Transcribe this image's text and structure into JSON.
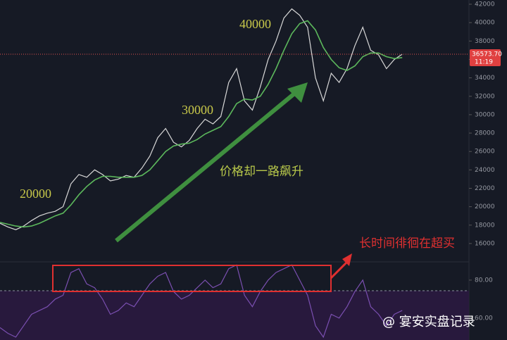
{
  "chart_data": [
    {
      "type": "line",
      "annotations": [
        "20000",
        "30000",
        "40000",
        "价格却一路飙升",
        "长时间徘徊在超买"
      ],
      "series": [
        {
          "name": "price",
          "color": "#d8d8d8",
          "values": [
            18200,
            17800,
            17500,
            17900,
            18500,
            19000,
            19300,
            19500,
            20000,
            22500,
            23500,
            23200,
            24000,
            23500,
            22800,
            23000,
            23400,
            23200,
            24200,
            25500,
            27500,
            28500,
            27000,
            26500,
            27200,
            28500,
            29500,
            29000,
            29800,
            33500,
            35000,
            31500,
            30500,
            33000,
            36000,
            38000,
            40500,
            41500,
            40800,
            39500,
            34000,
            31500,
            34500,
            33500,
            35000,
            37500,
            39500,
            37000,
            36500,
            35000,
            36000,
            36573.7
          ]
        },
        {
          "name": "ma",
          "color": "#5cb85c",
          "values": [
            18300,
            18100,
            17900,
            17800,
            17900,
            18200,
            18600,
            19000,
            19300,
            20200,
            21300,
            22200,
            22900,
            23300,
            23300,
            23200,
            23200,
            23200,
            23400,
            24000,
            25000,
            26000,
            26600,
            26800,
            26900,
            27300,
            27900,
            28300,
            28700,
            29800,
            31200,
            31700,
            31600,
            32000,
            33300,
            35000,
            37000,
            38800,
            39900,
            40200,
            39200,
            37300,
            36000,
            35100,
            34800,
            35300,
            36300,
            36700,
            36700,
            36300,
            36100,
            36200
          ]
        }
      ],
      "ylim": [
        14160,
        42460
      ],
      "yticks": [
        16000,
        18000,
        20000,
        22000,
        24000,
        26000,
        28000,
        30000,
        32000,
        34000,
        36000,
        38000,
        40000,
        42000
      ],
      "price_tag": {
        "value": 36573.7,
        "label": "36573.70"
      },
      "time_tag": "11:19"
    },
    {
      "type": "line",
      "series": [
        {
          "name": "rsi",
          "color": "#7a4fb0",
          "values": [
            55,
            52,
            50,
            56,
            62,
            64,
            66,
            70,
            72,
            84,
            86,
            78,
            76,
            70,
            62,
            64,
            68,
            66,
            72,
            78,
            82,
            84,
            74,
            70,
            72,
            76,
            80,
            76,
            78,
            86,
            88,
            72,
            66,
            74,
            80,
            84,
            86,
            88,
            80,
            72,
            56,
            50,
            62,
            60,
            66,
            74,
            80,
            66,
            62,
            56,
            62,
            64
          ]
        }
      ],
      "ylim": [
        48.5,
        89.6
      ],
      "yticks": [
        {
          "value": 60,
          "label": "60.00"
        },
        {
          "value": 80,
          "label": "80.00"
        }
      ]
    }
  ],
  "watermark": "@ 宴安实盘记录"
}
